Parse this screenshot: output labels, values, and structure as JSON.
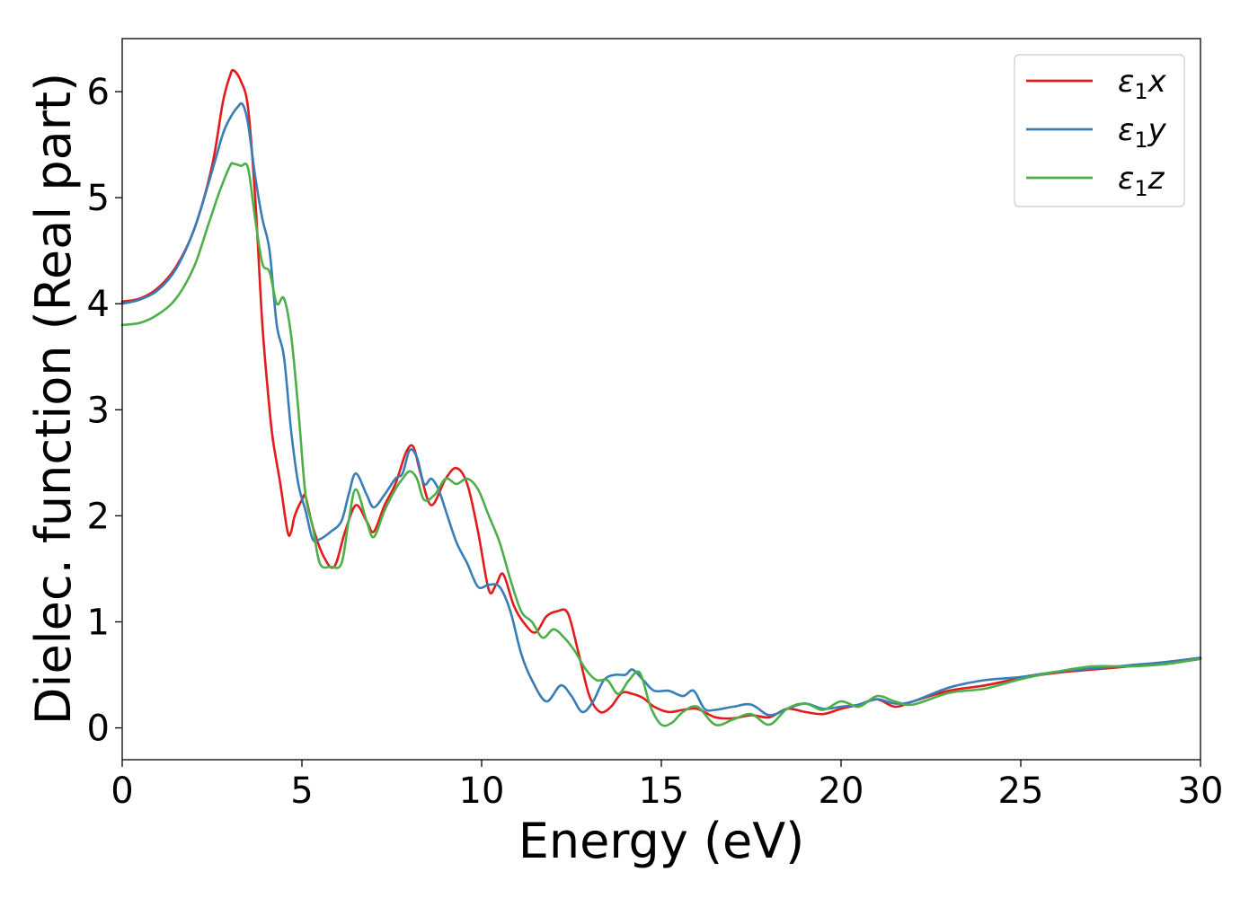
{
  "chart_data": {
    "type": "line",
    "xlabel": "Energy (eV)",
    "ylabel": "Dielec. function (Real part)",
    "xlim": [
      0,
      30
    ],
    "ylim": [
      -0.3,
      6.5
    ],
    "xticks": [
      0,
      5,
      10,
      15,
      20,
      25,
      30
    ],
    "yticks": [
      0,
      1,
      2,
      3,
      4,
      5,
      6
    ],
    "grid": false,
    "legend_position": "top-right",
    "series": [
      {
        "name": "ε₁x",
        "legend_symbol": "ε",
        "legend_sub": "1",
        "legend_var": "x",
        "color": "#e41a1c",
        "x": [
          0,
          0.5,
          1,
          1.5,
          2,
          2.5,
          2.8,
          3.0,
          3.1,
          3.3,
          3.5,
          3.7,
          3.9,
          4.1,
          4.2,
          4.4,
          4.6,
          4.7,
          4.8,
          5.0,
          5.1,
          5.3,
          5.6,
          5.9,
          6.2,
          6.5,
          6.8,
          7.0,
          7.3,
          7.6,
          7.9,
          8.1,
          8.3,
          8.6,
          9.0,
          9.3,
          9.6,
          9.9,
          10.2,
          10.4,
          10.6,
          10.9,
          11.2,
          11.5,
          11.8,
          12.1,
          12.4,
          12.7,
          13.0,
          13.3,
          13.6,
          13.9,
          14.2,
          14.5,
          14.8,
          15.2,
          15.6,
          16.0,
          16.5,
          17.0,
          17.5,
          18.0,
          18.5,
          19.0,
          19.5,
          20.0,
          20.5,
          21.0,
          21.5,
          22.0,
          23.0,
          24.0,
          25.0,
          26.0,
          27.0,
          28.0,
          29.0,
          30.0
        ],
        "y": [
          4.02,
          4.05,
          4.15,
          4.35,
          4.7,
          5.3,
          5.9,
          6.15,
          6.2,
          6.1,
          5.85,
          5.0,
          3.8,
          3.0,
          2.7,
          2.3,
          1.85,
          1.85,
          2.0,
          2.15,
          2.18,
          1.9,
          1.62,
          1.52,
          1.85,
          2.1,
          1.95,
          1.85,
          2.1,
          2.3,
          2.6,
          2.65,
          2.4,
          2.1,
          2.35,
          2.45,
          2.3,
          1.85,
          1.3,
          1.35,
          1.45,
          1.15,
          0.98,
          0.9,
          1.05,
          1.1,
          1.08,
          0.7,
          0.3,
          0.15,
          0.2,
          0.33,
          0.32,
          0.28,
          0.2,
          0.15,
          0.17,
          0.18,
          0.1,
          0.09,
          0.12,
          0.1,
          0.18,
          0.15,
          0.13,
          0.18,
          0.22,
          0.27,
          0.2,
          0.25,
          0.35,
          0.4,
          0.47,
          0.52,
          0.55,
          0.58,
          0.62,
          0.66
        ]
      },
      {
        "name": "ε₁y",
        "legend_symbol": "ε",
        "legend_sub": "1",
        "legend_var": "y",
        "color": "#377eb8",
        "x": [
          0,
          0.5,
          1,
          1.5,
          2,
          2.5,
          2.8,
          3.0,
          3.2,
          3.35,
          3.5,
          3.7,
          3.9,
          4.1,
          4.3,
          4.5,
          4.7,
          4.9,
          5.1,
          5.3,
          5.5,
          5.8,
          6.1,
          6.3,
          6.5,
          6.8,
          7.0,
          7.3,
          7.6,
          7.8,
          8.0,
          8.2,
          8.4,
          8.6,
          8.8,
          9.0,
          9.3,
          9.6,
          9.9,
          10.2,
          10.5,
          10.8,
          11.1,
          11.4,
          11.8,
          12.2,
          12.5,
          12.8,
          13.1,
          13.4,
          13.7,
          14.0,
          14.2,
          14.5,
          14.8,
          15.2,
          15.6,
          15.9,
          16.2,
          16.5,
          17.0,
          17.5,
          18.0,
          18.5,
          19.0,
          19.5,
          20.0,
          20.5,
          21.0,
          21.5,
          22.0,
          23.0,
          24.0,
          25.0,
          26.0,
          27.0,
          28.0,
          29.0,
          30.0
        ],
        "y": [
          4.0,
          4.04,
          4.13,
          4.33,
          4.7,
          5.25,
          5.6,
          5.75,
          5.85,
          5.88,
          5.7,
          5.2,
          4.8,
          4.5,
          3.8,
          3.5,
          2.8,
          2.3,
          2.05,
          1.78,
          1.78,
          1.85,
          1.95,
          2.2,
          2.4,
          2.2,
          2.08,
          2.2,
          2.35,
          2.4,
          2.62,
          2.55,
          2.3,
          2.35,
          2.25,
          2.05,
          1.75,
          1.55,
          1.33,
          1.35,
          1.33,
          1.1,
          0.7,
          0.45,
          0.25,
          0.4,
          0.3,
          0.15,
          0.25,
          0.45,
          0.5,
          0.5,
          0.55,
          0.45,
          0.35,
          0.35,
          0.3,
          0.35,
          0.18,
          0.17,
          0.2,
          0.22,
          0.12,
          0.18,
          0.23,
          0.18,
          0.2,
          0.22,
          0.27,
          0.23,
          0.25,
          0.38,
          0.45,
          0.48,
          0.53,
          0.56,
          0.59,
          0.62,
          0.66
        ]
      },
      {
        "name": "ε₁z",
        "legend_symbol": "ε",
        "legend_sub": "1",
        "legend_var": "z",
        "color": "#4daf4a",
        "x": [
          0,
          0.5,
          1,
          1.5,
          2,
          2.4,
          2.7,
          3.0,
          3.1,
          3.3,
          3.5,
          3.7,
          3.9,
          4.1,
          4.3,
          4.5,
          4.7,
          4.9,
          5.1,
          5.3,
          5.5,
          5.8,
          6.1,
          6.3,
          6.5,
          6.8,
          7.0,
          7.3,
          7.6,
          7.8,
          8.0,
          8.2,
          8.4,
          8.7,
          9.0,
          9.3,
          9.6,
          9.9,
          10.2,
          10.5,
          10.8,
          11.1,
          11.4,
          11.7,
          12.0,
          12.3,
          12.6,
          12.9,
          13.2,
          13.5,
          13.8,
          14.1,
          14.4,
          14.7,
          15.0,
          15.3,
          15.6,
          16.0,
          16.5,
          17.0,
          17.5,
          18.0,
          18.5,
          19.0,
          19.5,
          20.0,
          20.5,
          21.0,
          21.5,
          22.0,
          23.0,
          24.0,
          25.0,
          26.0,
          27.0,
          28.0,
          29.0,
          30.0
        ],
        "y": [
          3.8,
          3.82,
          3.9,
          4.05,
          4.35,
          4.75,
          5.05,
          5.3,
          5.32,
          5.3,
          5.28,
          4.8,
          4.38,
          4.3,
          4.0,
          4.05,
          3.7,
          3.0,
          2.2,
          1.9,
          1.55,
          1.52,
          1.55,
          1.95,
          2.25,
          1.95,
          1.8,
          2.05,
          2.25,
          2.35,
          2.42,
          2.35,
          2.15,
          2.2,
          2.35,
          2.3,
          2.35,
          2.25,
          2.0,
          1.75,
          1.4,
          1.1,
          1.0,
          0.85,
          0.93,
          0.85,
          0.72,
          0.55,
          0.45,
          0.45,
          0.32,
          0.45,
          0.52,
          0.2,
          0.03,
          0.05,
          0.15,
          0.2,
          0.03,
          0.08,
          0.13,
          0.03,
          0.18,
          0.23,
          0.17,
          0.25,
          0.2,
          0.3,
          0.25,
          0.22,
          0.33,
          0.37,
          0.46,
          0.53,
          0.58,
          0.58,
          0.6,
          0.65
        ]
      }
    ]
  }
}
